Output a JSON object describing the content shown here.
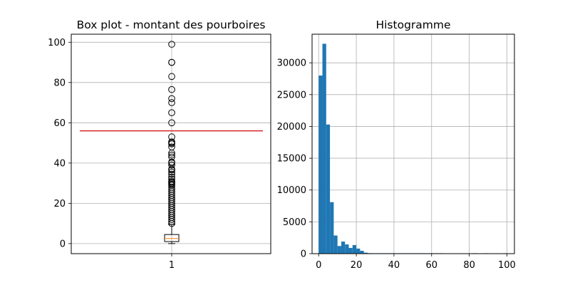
{
  "chart_data": [
    {
      "type": "box",
      "title": "Box plot - montant des pourboires",
      "xlabel": "",
      "ylabel": "",
      "categories": [
        "1"
      ],
      "ylim": [
        -5,
        104
      ],
      "yticks": [
        0,
        20,
        40,
        60,
        80,
        100
      ],
      "grid": true,
      "box": {
        "min": 0,
        "q1": 1.0,
        "median": 2.5,
        "q3": 4.5,
        "max": 9.5
      },
      "outliers": [
        99,
        90,
        90,
        83,
        76.5,
        72,
        70,
        65,
        60,
        53,
        50.5,
        50,
        49.5,
        48,
        45,
        44,
        43,
        40.5,
        40,
        39,
        37,
        36.5,
        35.5,
        34.5,
        33,
        32,
        31,
        30.5,
        30,
        29.5,
        29,
        28,
        27,
        26,
        25,
        24,
        23,
        22,
        21,
        20,
        19,
        18,
        17,
        16,
        15,
        14,
        13,
        12,
        11,
        10
      ],
      "reference_line": {
        "y": 56,
        "color": "#d62728"
      },
      "colors": {
        "box": "#000000",
        "median": "#ff7f0e",
        "grid": "#b0b0b0"
      }
    },
    {
      "type": "histogram",
      "title": "Histogramme",
      "xlabel": "",
      "ylabel": "",
      "bins": {
        "start": 0,
        "width": 2,
        "count": 50
      },
      "values": [
        28000,
        33000,
        20300,
        8100,
        2850,
        1200,
        1900,
        1450,
        900,
        1350,
        800,
        450,
        150,
        80,
        50,
        30,
        20,
        15,
        10,
        8,
        5,
        5,
        4,
        3,
        3,
        2,
        2,
        1,
        1,
        1,
        1,
        1,
        1,
        0,
        0,
        0,
        0,
        0,
        0,
        0,
        0,
        1,
        0,
        0,
        1,
        0,
        0,
        0,
        0,
        1
      ],
      "xlim": [
        -3.5,
        104
      ],
      "ylim": [
        0,
        34500
      ],
      "xticks": [
        0,
        20,
        40,
        60,
        80,
        100
      ],
      "yticks": [
        0,
        5000,
        10000,
        15000,
        20000,
        25000,
        30000
      ],
      "grid": true,
      "colors": {
        "bars": "#1f77b4",
        "grid": "#b0b0b0"
      }
    }
  ]
}
